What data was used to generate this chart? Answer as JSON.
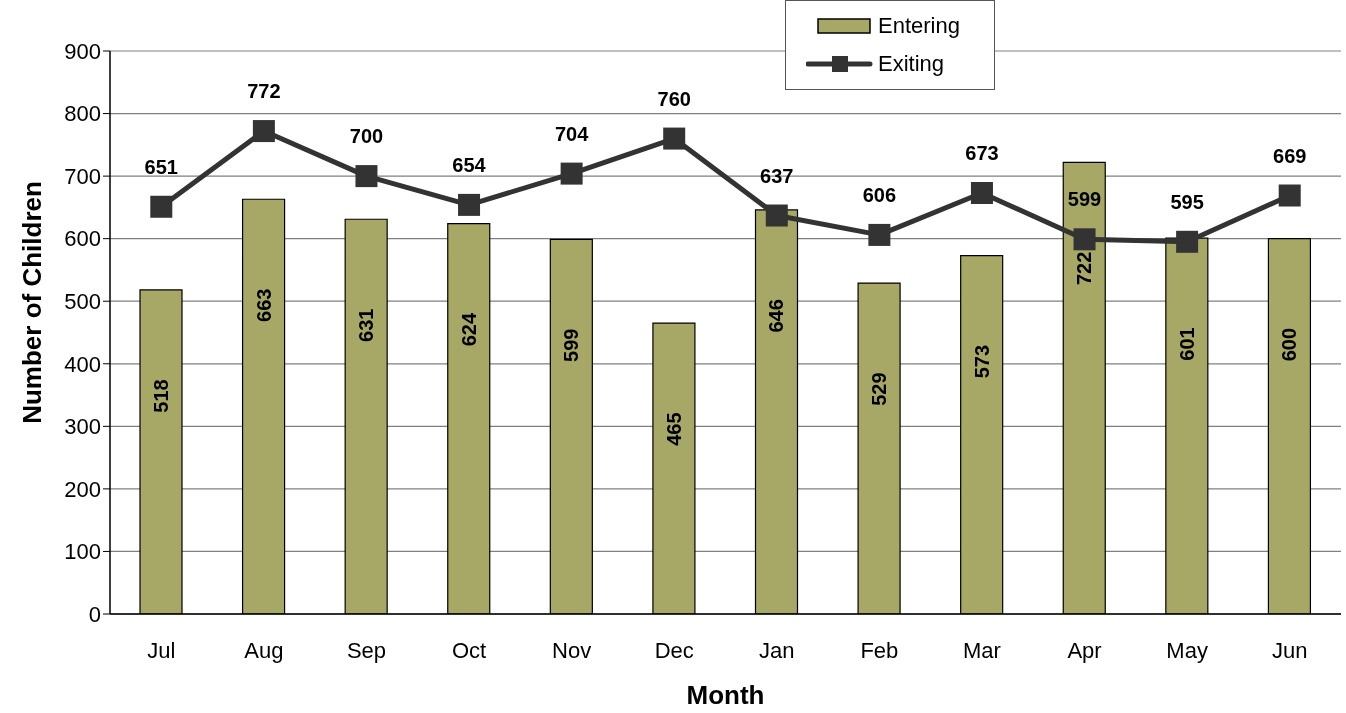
{
  "chart_data": {
    "type": "bar",
    "xlabel": "Month",
    "ylabel": "Number of Children",
    "categories": [
      "Jul",
      "Aug",
      "Sep",
      "Oct",
      "Nov",
      "Dec",
      "Jan",
      "Feb",
      "Mar",
      "Apr",
      "May",
      "Jun"
    ],
    "series": [
      {
        "name": "Entering",
        "color": "#a8a866",
        "values": [
          518,
          663,
          631,
          624,
          599,
          465,
          646,
          529,
          573,
          722,
          601,
          600
        ]
      },
      {
        "name": "Exiting",
        "type": "line",
        "color": "#333333",
        "values": [
          651,
          772,
          700,
          654,
          704,
          760,
          637,
          606,
          673,
          599,
          595,
          669
        ]
      }
    ],
    "ylim": [
      0,
      900
    ],
    "yticks": [
      0,
      100,
      200,
      300,
      400,
      500,
      600,
      700,
      800,
      900
    ],
    "grid": "y",
    "legend": "top",
    "marker": "square",
    "data_labels": true
  }
}
